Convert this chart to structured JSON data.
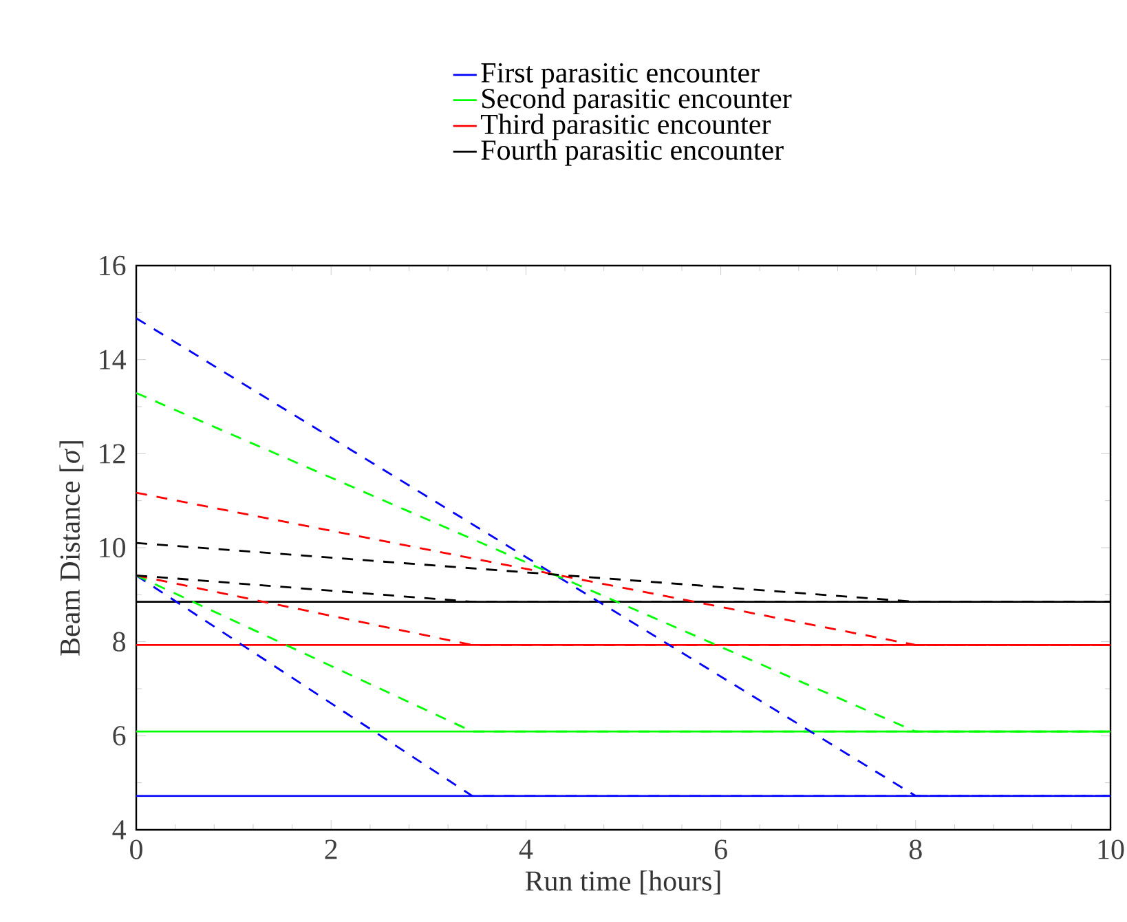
{
  "chart_data": {
    "type": "line",
    "xlabel": "Run time [hours]",
    "ylabel": "Beam Distance [*σ*]",
    "xlim": [
      0,
      10
    ],
    "ylim": [
      4,
      16
    ],
    "xticks": [
      0,
      2,
      4,
      6,
      8,
      10
    ],
    "yticks": [
      4,
      6,
      8,
      10,
      12,
      14,
      16
    ],
    "legend": "top",
    "series": [
      {
        "name": "First parasitic encounter",
        "color": "#0000ff",
        "line_style": "solid",
        "x": [
          0,
          10
        ],
        "values": [
          4.72,
          4.72
        ]
      },
      {
        "name": "Second parasitic encounter",
        "color": "#00ff00",
        "line_style": "solid",
        "x": [
          0,
          10
        ],
        "values": [
          6.09,
          6.09
        ]
      },
      {
        "name": "Third parasitic encounter",
        "color": "#ff0000",
        "line_style": "solid",
        "x": [
          0,
          10
        ],
        "values": [
          7.93,
          7.93
        ]
      },
      {
        "name": "Fourth parasitic encounter",
        "color": "#000000",
        "line_style": "solid",
        "x": [
          0,
          10
        ],
        "values": [
          8.85,
          8.85
        ]
      },
      {
        "color": "#0000ff",
        "line_style": "dashed",
        "x": [
          0,
          3.45,
          10
        ],
        "values": [
          9.41,
          4.72,
          4.72
        ]
      },
      {
        "color": "#00ff00",
        "line_style": "dashed",
        "x": [
          0,
          3.45,
          10
        ],
        "values": [
          9.41,
          6.09,
          6.09
        ]
      },
      {
        "color": "#ff0000",
        "line_style": "dashed",
        "x": [
          0,
          3.45,
          10
        ],
        "values": [
          9.41,
          7.93,
          7.93
        ]
      },
      {
        "color": "#000000",
        "line_style": "dashed",
        "x": [
          0,
          3.45,
          10
        ],
        "values": [
          9.41,
          8.85,
          8.85
        ]
      },
      {
        "color": "#0000ff",
        "line_style": "dashed",
        "x": [
          0,
          8,
          10
        ],
        "values": [
          14.88,
          4.72,
          4.72
        ]
      },
      {
        "color": "#00ff00",
        "line_style": "dashed",
        "x": [
          0,
          8,
          10
        ],
        "values": [
          13.29,
          6.09,
          6.09
        ]
      },
      {
        "color": "#ff0000",
        "line_style": "dashed",
        "x": [
          0,
          8,
          10
        ],
        "values": [
          11.17,
          7.93,
          7.93
        ]
      },
      {
        "color": "#000000",
        "line_style": "dashed",
        "x": [
          0,
          8,
          10
        ],
        "values": [
          10.1,
          8.85,
          8.85
        ]
      }
    ]
  }
}
